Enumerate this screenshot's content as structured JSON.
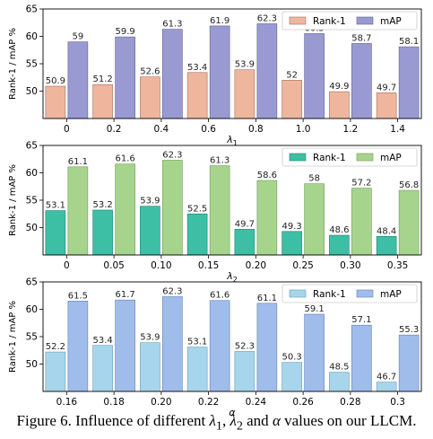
{
  "chart_data": [
    {
      "type": "bar",
      "categories": [
        "0",
        "0.2",
        "0.4",
        "0.6",
        "0.8",
        "1.0",
        "1.2",
        "1.4"
      ],
      "xlabel_symbol": "λ",
      "xlabel_subscript": "1",
      "ylabel": "Rank-1 / mAP %",
      "ylim": [
        45,
        65
      ],
      "yticks": [
        "50",
        "55",
        "60",
        "65"
      ],
      "ytick_values": [
        50,
        55,
        60,
        65
      ],
      "grid": false,
      "legend_position": "top-right",
      "series": [
        {
          "name": "Rank-1",
          "color": "#efb69d",
          "edge": "#a07060",
          "values": [
            50.9,
            51.2,
            52.6,
            53.4,
            53.9,
            52,
            49.9,
            49.7
          ],
          "labels": [
            "50.9",
            "51.2",
            "52.6",
            "53.4",
            "53.9",
            "52",
            "49.9",
            "49.7"
          ]
        },
        {
          "name": "mAP",
          "color": "#9a9ad3",
          "edge": "#606090",
          "values": [
            59,
            59.9,
            61.3,
            61.9,
            62.3,
            60.5,
            58.7,
            58.1
          ],
          "labels": [
            "59",
            "59.9",
            "61.3",
            "61.9",
            "62.3",
            "60.5",
            "58.7",
            "58.1"
          ]
        }
      ]
    },
    {
      "type": "bar",
      "categories": [
        "0",
        "0.05",
        "0.10",
        "0.15",
        "0.20",
        "0.25",
        "0.30",
        "0.35"
      ],
      "xlabel_symbol": "λ",
      "xlabel_subscript": "2",
      "ylabel": "Rank-1 / mAP %",
      "ylim": [
        45,
        65
      ],
      "yticks": [
        "50",
        "55",
        "60",
        "65"
      ],
      "ytick_values": [
        50,
        55,
        60,
        65
      ],
      "grid": false,
      "legend_position": "top-right",
      "series": [
        {
          "name": "Rank-1",
          "color": "#3dbfa5",
          "edge": "#258070",
          "values": [
            53.1,
            53.2,
            53.9,
            52.5,
            49.7,
            49.3,
            48.6,
            48.4
          ],
          "labels": [
            "53.1",
            "53.2",
            "53.9",
            "52.5",
            "49.7",
            "49.3",
            "48.6",
            "48.4"
          ]
        },
        {
          "name": "mAP",
          "color": "#a7d48c",
          "edge": "#6f9a58",
          "values": [
            61.1,
            61.6,
            62.3,
            61.3,
            58.6,
            58,
            57.2,
            56.8
          ],
          "labels": [
            "61.1",
            "61.6",
            "62.3",
            "61.3",
            "58.6",
            "58",
            "57.2",
            "56.8"
          ]
        }
      ]
    },
    {
      "type": "bar",
      "categories": [
        "0.16",
        "0.18",
        "0.20",
        "0.22",
        "0.24",
        "0.26",
        "0.28",
        "0.3"
      ],
      "xlabel_symbol": "α",
      "xlabel_subscript": "",
      "ylabel": "Rank-1 / mAP %",
      "ylim": [
        45,
        65
      ],
      "yticks": [
        "50",
        "55",
        "60",
        "65"
      ],
      "ytick_values": [
        50,
        55,
        60,
        65
      ],
      "grid": false,
      "legend_position": "top-right",
      "series": [
        {
          "name": "Rank-1",
          "color": "#a7d6ec",
          "edge": "#6a9ab0",
          "values": [
            52.2,
            53.4,
            53.9,
            53.1,
            52.3,
            50.3,
            48.5,
            46.7
          ],
          "labels": [
            "52.2",
            "53.4",
            "53.9",
            "53.1",
            "52.3",
            "50.3",
            "48.5",
            "46.7"
          ]
        },
        {
          "name": "mAP",
          "color": "#9fbceb",
          "edge": "#6580b0",
          "values": [
            61.5,
            61.7,
            62.3,
            61.6,
            61.1,
            59.1,
            57.1,
            55.3
          ],
          "labels": [
            "61.5",
            "61.7",
            "62.3",
            "61.6",
            "61.1",
            "59.1",
            "57.1",
            "55.3"
          ]
        }
      ]
    }
  ],
  "caption": {
    "prefix": "Figure 6. Influence of different ",
    "sym1": "λ",
    "sub1": "1",
    "sep1": ", ",
    "sym2": "λ",
    "sub2": "2",
    "sep2": " and ",
    "sym3": "α",
    "suffix": " values on our LLCM."
  }
}
